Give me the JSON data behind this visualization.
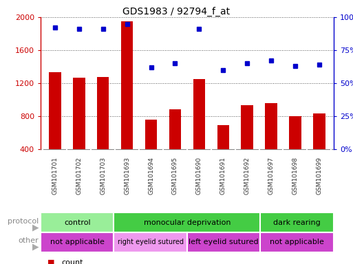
{
  "title": "GDS1983 / 92794_f_at",
  "samples": [
    "GSM101701",
    "GSM101702",
    "GSM101703",
    "GSM101693",
    "GSM101694",
    "GSM101695",
    "GSM101690",
    "GSM101691",
    "GSM101692",
    "GSM101697",
    "GSM101698",
    "GSM101699"
  ],
  "counts": [
    1330,
    1270,
    1275,
    1950,
    755,
    880,
    1250,
    690,
    930,
    960,
    800,
    830
  ],
  "percentiles": [
    92,
    91,
    91,
    95,
    62,
    65,
    91,
    60,
    65,
    67,
    63,
    64
  ],
  "ylim_left": [
    400,
    2000
  ],
  "ylim_right": [
    0,
    100
  ],
  "yticks_left": [
    400,
    800,
    1200,
    1600,
    2000
  ],
  "yticks_right": [
    0,
    25,
    50,
    75,
    100
  ],
  "bar_color": "#cc0000",
  "dot_color": "#0000cc",
  "protocol_groups": [
    {
      "label": "control",
      "start": 0,
      "end": 3,
      "color": "#99ee99"
    },
    {
      "label": "monocular deprivation",
      "start": 3,
      "end": 9,
      "color": "#44cc44"
    },
    {
      "label": "dark rearing",
      "start": 9,
      "end": 12,
      "color": "#44cc44"
    }
  ],
  "other_groups": [
    {
      "label": "not applicable",
      "start": 0,
      "end": 3,
      "color": "#cc44cc"
    },
    {
      "label": "right eyelid sutured",
      "start": 3,
      "end": 6,
      "color": "#ee99ee"
    },
    {
      "label": "left eyelid sutured",
      "start": 6,
      "end": 9,
      "color": "#cc44cc"
    },
    {
      "label": "not applicable",
      "start": 9,
      "end": 12,
      "color": "#cc44cc"
    }
  ],
  "tick_label_color_left": "#cc0000",
  "tick_label_color_right": "#0000cc",
  "bar_width": 0.5,
  "bg_color": "#ffffff",
  "label_area_color": "#cccccc",
  "grid_dotted_color": "#555555"
}
